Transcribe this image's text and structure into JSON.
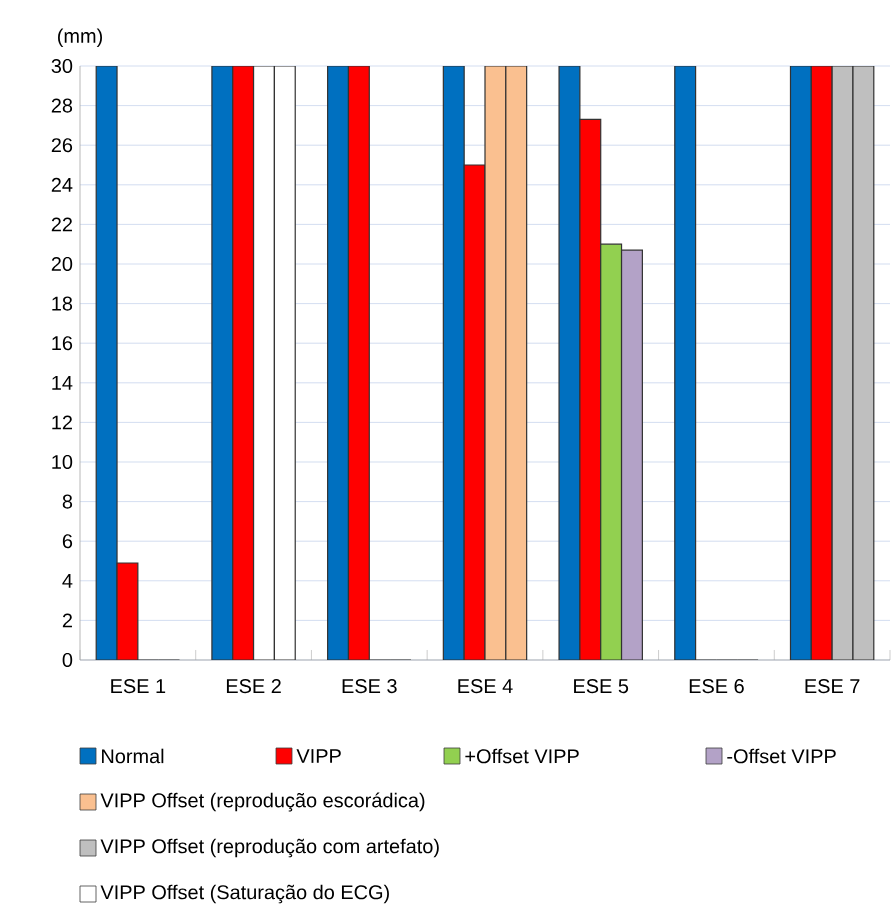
{
  "chart_data": {
    "type": "bar",
    "ylabel": "(mm)",
    "categories": [
      "ESE 1",
      "ESE 2",
      "ESE 3",
      "ESE 4",
      "ESE 5",
      "ESE 6",
      "ESE 7"
    ],
    "ylim": [
      0,
      30
    ],
    "yticks": [
      0,
      2,
      4,
      6,
      8,
      10,
      12,
      14,
      16,
      18,
      20,
      22,
      24,
      26,
      28,
      30
    ],
    "grid": "y",
    "legend": "bottom",
    "series": [
      {
        "name": "Normal",
        "color": "#0070c0",
        "values": [
          30,
          30,
          30,
          30,
          30,
          30,
          30
        ]
      },
      {
        "name": "VIPP",
        "color": "#ff0000",
        "values": [
          4.9,
          30,
          30,
          25.0,
          27.3,
          0,
          30
        ]
      },
      {
        "name": "+Offset  VIPP",
        "color": "#92d050",
        "values": [
          0,
          30,
          0,
          30,
          21.0,
          0,
          30
        ],
        "colors": [
          "#92d050",
          "#ffffff",
          "#92d050",
          "#fac090",
          "#92d050",
          "#92d050",
          "#bfbfbf"
        ]
      },
      {
        "name": "-Offset VIPP",
        "color": "#b3a2c7",
        "values": [
          0,
          30,
          0,
          30,
          20.7,
          0,
          30
        ],
        "colors": [
          "#b3a2c7",
          "#ffffff",
          "#b3a2c7",
          "#fac090",
          "#b3a2c7",
          "#b3a2c7",
          "#bfbfbf"
        ]
      },
      {
        "name": "VIPP  Offset (reprodução escorádica)",
        "color": "#fac090",
        "values": [
          null,
          null,
          null,
          null,
          null,
          null,
          null
        ]
      },
      {
        "name": "VIPP  Offset (reprodução com artefato)",
        "color": "#bfbfbf",
        "values": [
          null,
          null,
          null,
          null,
          null,
          null,
          null
        ]
      },
      {
        "name": "VIPP  Offset (Saturação do ECG)",
        "color": "#ffffff",
        "values": [
          null,
          null,
          null,
          null,
          null,
          null,
          null
        ]
      }
    ]
  }
}
